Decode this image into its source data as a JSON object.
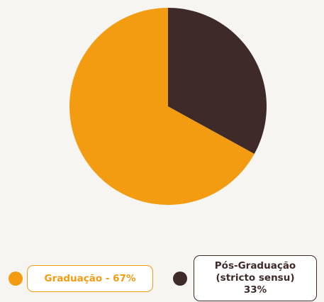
{
  "chart_data": {
    "type": "pie",
    "labels": [
      "Graduação - 67%",
      "Pós-Graduação (stricto sensu) 33%"
    ],
    "values": [
      67,
      33
    ],
    "colors": [
      "#f39c12",
      "#3e2b29"
    ]
  }
}
